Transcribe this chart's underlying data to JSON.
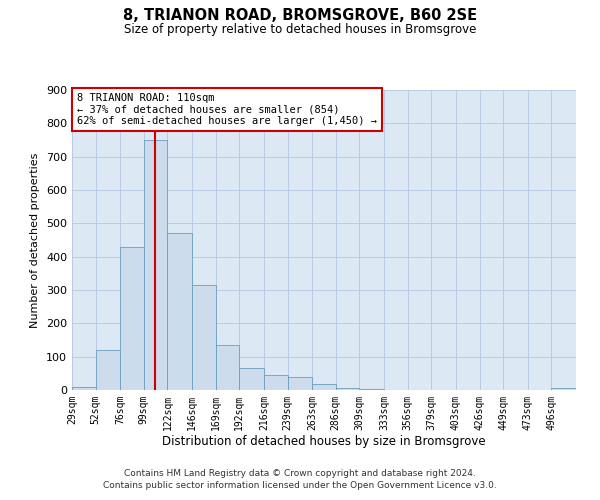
{
  "title": "8, TRIANON ROAD, BROMSGROVE, B60 2SE",
  "subtitle": "Size of property relative to detached houses in Bromsgrove",
  "xlabel": "Distribution of detached houses by size in Bromsgrove",
  "ylabel": "Number of detached properties",
  "bar_color": "#cddcec",
  "bar_edge_color": "#6a9ec0",
  "vline_x": 110,
  "vline_color": "#cc0000",
  "categories": [
    "29sqm",
    "52sqm",
    "76sqm",
    "99sqm",
    "122sqm",
    "146sqm",
    "169sqm",
    "192sqm",
    "216sqm",
    "239sqm",
    "263sqm",
    "286sqm",
    "309sqm",
    "333sqm",
    "356sqm",
    "379sqm",
    "403sqm",
    "426sqm",
    "449sqm",
    "473sqm",
    "496sqm"
  ],
  "bin_edges": [
    29,
    52,
    76,
    99,
    122,
    146,
    169,
    192,
    216,
    239,
    263,
    286,
    309,
    333,
    356,
    379,
    403,
    426,
    449,
    473,
    496,
    520
  ],
  "values": [
    10,
    120,
    430,
    750,
    470,
    315,
    135,
    65,
    45,
    40,
    18,
    5,
    3,
    0,
    0,
    0,
    0,
    0,
    0,
    0,
    5
  ],
  "ylim": [
    0,
    900
  ],
  "yticks": [
    0,
    100,
    200,
    300,
    400,
    500,
    600,
    700,
    800,
    900
  ],
  "annotation_text": "8 TRIANON ROAD: 110sqm\n← 37% of detached houses are smaller (854)\n62% of semi-detached houses are larger (1,450) →",
  "annotation_box_color": "#ffffff",
  "annotation_box_edge": "#cc0000",
  "footer1": "Contains HM Land Registry data © Crown copyright and database right 2024.",
  "footer2": "Contains public sector information licensed under the Open Government Licence v3.0.",
  "bg_color": "#ffffff",
  "axes_bg_color": "#dce8f4",
  "grid_color": "#b8cce4"
}
